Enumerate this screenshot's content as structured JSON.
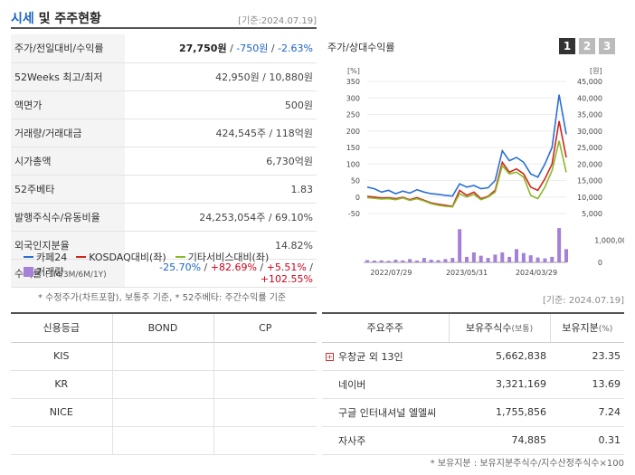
{
  "header": {
    "title_main": "시세",
    "title_rest": "및 주주현황",
    "date": "[기준:2024.07.19]"
  },
  "stock_rows": [
    {
      "label": "주가/전일대비/수익률",
      "price": "27,750원",
      "change": "-750원",
      "rate": "-2.63%"
    },
    {
      "label": "52Weeks 최고/최저",
      "value": "42,950원 / 10,880원"
    },
    {
      "label": "액면가",
      "value": "500원"
    },
    {
      "label": "거래량/거래대금",
      "value": "424,545주 / 118억원"
    },
    {
      "label": "시가총액",
      "value": "6,730억원"
    },
    {
      "label": "52주베타",
      "value": "1.83"
    },
    {
      "label": "발행주식수/유동비율",
      "value": "24,253,054주 / 69.10%"
    },
    {
      "label": "외국인지분율",
      "value": "14.82%"
    },
    {
      "label": "수익률",
      "sublabel": "(1M/3M/6M/1Y)",
      "r1": "-25.70%",
      "r2": "+82.69%",
      "r3": "+5.51%",
      "r4": "+102.55%"
    }
  ],
  "footnote1": "* 수정주가(차트포함), 보통주 기준, * 52주베타: 주간수익률 기준",
  "chart_panel": {
    "title": "주가/상대수익률",
    "tabs": [
      "1",
      "2",
      "3"
    ],
    "active_tab": 0
  },
  "chart_data": {
    "type": "line",
    "left_unit": "[%]",
    "right_unit": "[원]",
    "left_ticks": [
      "350",
      "300",
      "250",
      "200",
      "150",
      "100",
      "50",
      "0",
      "-50"
    ],
    "right_ticks": [
      "45,000",
      "40,000",
      "35,000",
      "30,000",
      "25,000",
      "20,000",
      "15,000",
      "10,000",
      "5,000"
    ],
    "volume_tick": "1,000,000",
    "volume_zero": "0",
    "x_labels": [
      "2022/07/29",
      "2023/05/31",
      "2024/03/29"
    ],
    "ylim": [
      -50,
      350
    ],
    "series": [
      {
        "name": "카페24",
        "color": "#2a6fd6",
        "values": [
          30,
          25,
          15,
          20,
          10,
          18,
          12,
          22,
          15,
          10,
          8,
          5,
          3,
          40,
          30,
          35,
          25,
          28,
          50,
          140,
          110,
          120,
          105,
          70,
          60,
          100,
          150,
          310,
          190
        ]
      },
      {
        "name": "KOSDAQ대비(좌)",
        "color": "#d0271b",
        "values": [
          2,
          0,
          -3,
          -2,
          -5,
          -1,
          -8,
          -2,
          -10,
          -18,
          -22,
          -25,
          -28,
          20,
          5,
          15,
          -5,
          2,
          20,
          105,
          75,
          85,
          70,
          30,
          20,
          55,
          100,
          230,
          120
        ]
      },
      {
        "name": "기타서비스대비(좌)",
        "color": "#8ab82a",
        "values": [
          -2,
          -4,
          -6,
          -5,
          -8,
          -3,
          -10,
          -5,
          -12,
          -20,
          -25,
          -28,
          -30,
          10,
          0,
          8,
          -8,
          0,
          15,
          95,
          70,
          75,
          60,
          5,
          -5,
          30,
          80,
          170,
          75
        ]
      }
    ],
    "volume": {
      "name": "거래량",
      "color": "#a57fd8",
      "values": [
        100000,
        80000,
        90000,
        70000,
        120000,
        90000,
        150000,
        80000,
        200000,
        120000,
        100000,
        150000,
        200000,
        1500000,
        250000,
        450000,
        300000,
        200000,
        350000,
        450000,
        250000,
        600000,
        420000,
        320000,
        220000,
        180000,
        250000,
        1550000,
        600000
      ],
      "max": 1800000
    }
  },
  "date2": "[기준: 2024.07.19]",
  "credit": {
    "headers": [
      "신용등급",
      "BOND",
      "CP"
    ],
    "rows": [
      {
        "agency": "KIS",
        "bond": "",
        "cp": ""
      },
      {
        "agency": "KR",
        "bond": "",
        "cp": ""
      },
      {
        "agency": "NICE",
        "bond": "",
        "cp": ""
      },
      {
        "agency": "",
        "bond": "",
        "cp": ""
      }
    ]
  },
  "holders": {
    "headers": [
      "주요주주",
      "보유주식수",
      "(보통)",
      "보유지분",
      "(%)"
    ],
    "rows": [
      {
        "name": "우창균 외 13인",
        "shares": "5,662,838",
        "pct": "23.35",
        "expand": true
      },
      {
        "name": "네이버",
        "shares": "3,321,169",
        "pct": "13.69"
      },
      {
        "name": "구글 인터내셔널 엘엘씨",
        "shares": "1,755,856",
        "pct": "7.24"
      },
      {
        "name": "자사주",
        "shares": "74,885",
        "pct": "0.31"
      }
    ]
  },
  "footnote2": "* 보유지분 : 보유지분주식수/지수산정주식수×100"
}
